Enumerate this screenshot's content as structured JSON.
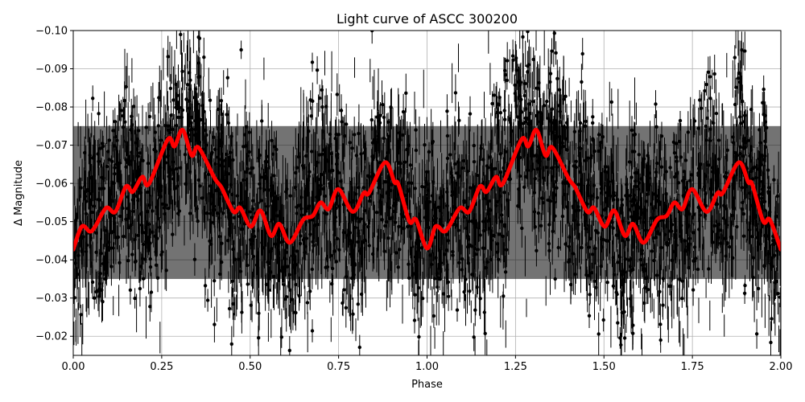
{
  "chart_data": {
    "type": "scatter",
    "title": "Light curve of ASCC 300200",
    "xlabel": "Phase",
    "ylabel": "Δ Magnitude",
    "xlim": [
      0.0,
      2.0
    ],
    "ylim": [
      -0.015,
      -0.1
    ],
    "y_inverted": true,
    "grid": true,
    "x_ticks": [
      "0.00",
      "0.25",
      "0.50",
      "0.75",
      "1.00",
      "1.25",
      "1.50",
      "1.75",
      "2.00"
    ],
    "x_tick_values": [
      0,
      0.25,
      0.5,
      0.75,
      1,
      1.25,
      1.5,
      1.75,
      2
    ],
    "y_ticks": [
      "−0.10",
      "−0.09",
      "−0.08",
      "−0.07",
      "−0.06",
      "−0.05",
      "−0.04",
      "−0.03",
      "−0.02"
    ],
    "y_tick_values": [
      -0.1,
      -0.09,
      -0.08,
      -0.07,
      -0.06,
      -0.05,
      -0.04,
      -0.03,
      -0.02
    ],
    "colors": {
      "observations": "#000000",
      "model": "#ff0000",
      "grid": "#b0b0b0"
    },
    "series": [
      {
        "kind": "observations-with-errorbars",
        "color": "#000000",
        "typical_scatter_std": 0.014,
        "typical_error": 0.004
      },
      {
        "kind": "model-line",
        "color": "#ff0000",
        "x": [
          0.0,
          0.024,
          0.047,
          0.062,
          0.093,
          0.119,
          0.149,
          0.168,
          0.195,
          0.214,
          0.267,
          0.286,
          0.309,
          0.335,
          0.354,
          0.4,
          0.419,
          0.453,
          0.472,
          0.502,
          0.529,
          0.559,
          0.582,
          0.612,
          0.65,
          0.677,
          0.699,
          0.722,
          0.749,
          0.79,
          0.821,
          0.836,
          0.881,
          0.908,
          0.919,
          0.95,
          0.969,
          1.0,
          1.024,
          1.047,
          1.062,
          1.093,
          1.119,
          1.149,
          1.168,
          1.195,
          1.214,
          1.267,
          1.286,
          1.309,
          1.335,
          1.354,
          1.4,
          1.419,
          1.453,
          1.472,
          1.502,
          1.529,
          1.559,
          1.582,
          1.612,
          1.65,
          1.677,
          1.699,
          1.722,
          1.749,
          1.79,
          1.821,
          1.836,
          1.881,
          1.908,
          1.919,
          1.95,
          1.969,
          2.0
        ],
        "y": [
          -0.0427,
          -0.0487,
          -0.0474,
          -0.0487,
          -0.0536,
          -0.0526,
          -0.0592,
          -0.0578,
          -0.0617,
          -0.0599,
          -0.0715,
          -0.0697,
          -0.074,
          -0.0673,
          -0.0694,
          -0.0613,
          -0.0589,
          -0.0526,
          -0.0536,
          -0.0487,
          -0.0529,
          -0.0463,
          -0.0494,
          -0.0445,
          -0.0505,
          -0.0515,
          -0.055,
          -0.0533,
          -0.0585,
          -0.0526,
          -0.0575,
          -0.0575,
          -0.0655,
          -0.0603,
          -0.0598,
          -0.0501,
          -0.0505,
          -0.043,
          -0.0487,
          -0.0474,
          -0.0487,
          -0.0536,
          -0.0526,
          -0.0592,
          -0.0578,
          -0.0617,
          -0.0599,
          -0.0715,
          -0.0697,
          -0.074,
          -0.0673,
          -0.0694,
          -0.0613,
          -0.0589,
          -0.0526,
          -0.0536,
          -0.0487,
          -0.0529,
          -0.0463,
          -0.0494,
          -0.0445,
          -0.0505,
          -0.0515,
          -0.055,
          -0.0533,
          -0.0585,
          -0.0526,
          -0.0575,
          -0.0575,
          -0.0655,
          -0.0603,
          -0.0598,
          -0.0501,
          -0.0505,
          -0.0427
        ]
      }
    ]
  }
}
